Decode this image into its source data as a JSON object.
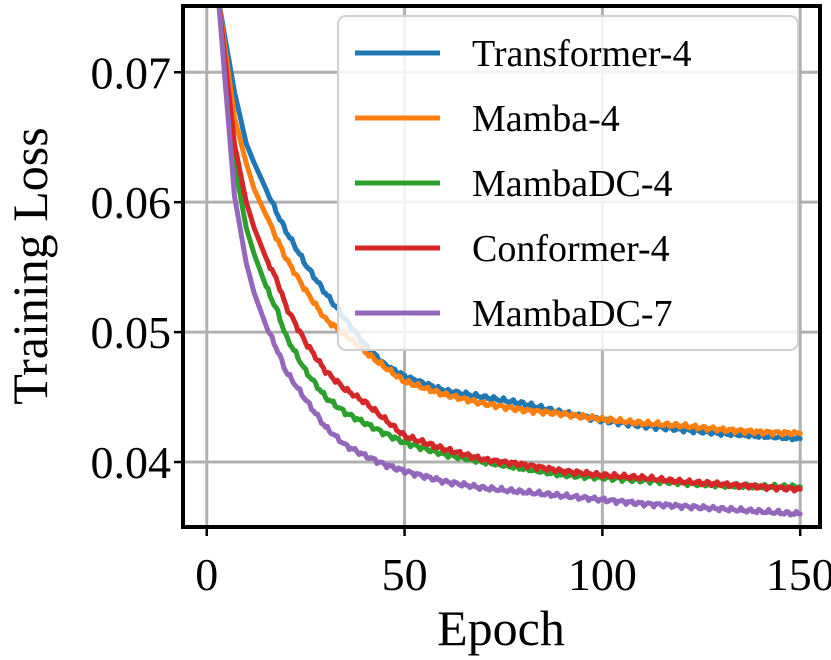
{
  "chart_data": {
    "type": "line",
    "title": "",
    "xlabel": "Epoch",
    "ylabel": "Training Loss",
    "xlim": [
      -6,
      155
    ],
    "ylim": [
      0.035,
      0.0751
    ],
    "xticks": [
      0,
      50,
      100,
      150
    ],
    "xtick_labels": [
      "0",
      "50",
      "100",
      "150"
    ],
    "yticks": [
      0.04,
      0.05,
      0.06,
      0.07
    ],
    "ytick_labels": [
      "0.04",
      "0.05",
      "0.06",
      "0.07"
    ],
    "grid": true,
    "legend_position": "top-right",
    "series": [
      {
        "name": "Transformer-4",
        "color": "#1f77b4",
        "x": [
          3,
          5,
          7,
          10,
          12,
          15,
          18,
          20,
          25,
          30,
          35,
          40,
          45,
          50,
          60,
          70,
          80,
          90,
          100,
          110,
          120,
          130,
          140,
          150
        ],
        "y": [
          0.0755,
          0.072,
          0.0685,
          0.0645,
          0.063,
          0.061,
          0.059,
          0.0578,
          0.0552,
          0.053,
          0.051,
          0.049,
          0.0475,
          0.0466,
          0.0455,
          0.045,
          0.0445,
          0.0438,
          0.0432,
          0.0428,
          0.0425,
          0.0422,
          0.042,
          0.0418
        ]
      },
      {
        "name": "Mamba-4",
        "color": "#ff7f0e",
        "x": [
          3,
          5,
          7,
          10,
          12,
          15,
          18,
          20,
          25,
          30,
          35,
          40,
          45,
          50,
          60,
          70,
          80,
          90,
          100,
          110,
          120,
          130,
          140,
          150
        ],
        "y": [
          0.0755,
          0.071,
          0.0665,
          0.063,
          0.061,
          0.059,
          0.057,
          0.0557,
          0.0532,
          0.051,
          0.0498,
          0.0485,
          0.0473,
          0.0462,
          0.0452,
          0.0445,
          0.044,
          0.0437,
          0.0433,
          0.043,
          0.0428,
          0.0425,
          0.0423,
          0.0422
        ]
      },
      {
        "name": "MambaDC-4",
        "color": "#2ca02c",
        "x": [
          3,
          5,
          7,
          10,
          12,
          15,
          18,
          20,
          25,
          30,
          35,
          40,
          45,
          50,
          60,
          70,
          80,
          90,
          100,
          110,
          120,
          130,
          140,
          150
        ],
        "y": [
          0.0755,
          0.069,
          0.063,
          0.058,
          0.056,
          0.0535,
          0.0515,
          0.0497,
          0.047,
          0.045,
          0.0438,
          0.043,
          0.0422,
          0.0415,
          0.0406,
          0.04,
          0.0395,
          0.039,
          0.0388,
          0.0386,
          0.0384,
          0.0382,
          0.0381,
          0.0381
        ]
      },
      {
        "name": "Conformer-4",
        "color": "#d62728",
        "x": [
          3,
          5,
          7,
          10,
          12,
          15,
          18,
          20,
          25,
          30,
          35,
          40,
          45,
          50,
          60,
          70,
          80,
          90,
          100,
          110,
          120,
          130,
          140,
          150
        ],
        "y": [
          0.0755,
          0.07,
          0.0645,
          0.06,
          0.058,
          0.0557,
          0.0538,
          0.052,
          0.0492,
          0.047,
          0.0456,
          0.0446,
          0.0433,
          0.042,
          0.041,
          0.0402,
          0.0398,
          0.0393,
          0.039,
          0.0388,
          0.0385,
          0.0383,
          0.0381,
          0.0379
        ]
      },
      {
        "name": "MambaDC-7",
        "color": "#9467bd",
        "x": [
          3,
          5,
          7,
          10,
          12,
          15,
          18,
          20,
          25,
          30,
          35,
          40,
          45,
          50,
          60,
          70,
          80,
          90,
          100,
          110,
          120,
          130,
          140,
          150
        ],
        "y": [
          0.0755,
          0.068,
          0.0605,
          0.0553,
          0.053,
          0.0505,
          0.0485,
          0.047,
          0.0448,
          0.0427,
          0.0413,
          0.0405,
          0.0398,
          0.0393,
          0.0385,
          0.038,
          0.0377,
          0.0374,
          0.0371,
          0.0368,
          0.0366,
          0.0364,
          0.0362,
          0.036
        ]
      }
    ]
  }
}
